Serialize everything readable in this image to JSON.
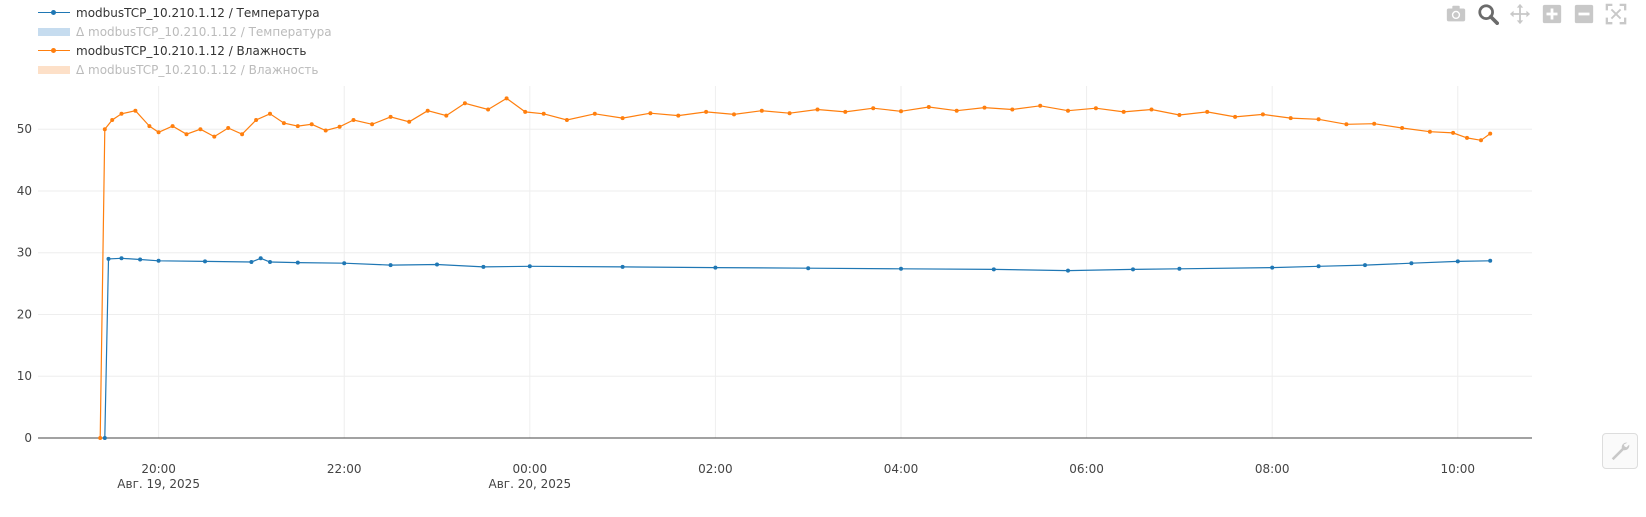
{
  "legend": [
    {
      "label": "modbusTCP_10.210.1.12 / Температура",
      "color": "#1f77b4",
      "style": "line-marker",
      "faded": false
    },
    {
      "label": "Δ modbusTCP_10.210.1.12 / Температура",
      "color": "#c6dcef",
      "style": "fill",
      "faded": true
    },
    {
      "label": "modbusTCP_10.210.1.12 / Влажность",
      "color": "#ff7f0e",
      "style": "line-marker",
      "faded": false
    },
    {
      "label": "Δ modbusTCP_10.210.1.12 / Влажность",
      "color": "#fde0c8",
      "style": "fill",
      "faded": true
    }
  ],
  "modebar": [
    "camera-icon",
    "zoom-icon",
    "pan-icon",
    "zoom-in-icon",
    "zoom-out-icon",
    "autoscale-icon"
  ],
  "chart_data": {
    "type": "line",
    "x_unit": "hours since 2025-08-19 00:00",
    "xlim": [
      18.7,
      34.8
    ],
    "ylim": [
      0,
      57
    ],
    "grid": true,
    "legend_position": "top-left",
    "y_ticks": [
      0,
      10,
      20,
      30,
      40,
      50
    ],
    "x_ticks": [
      {
        "value": 20,
        "label": "20:00",
        "sublabel": "Авг. 19, 2025"
      },
      {
        "value": 22,
        "label": "22:00",
        "sublabel": ""
      },
      {
        "value": 24,
        "label": "00:00",
        "sublabel": "Авг. 20, 2025"
      },
      {
        "value": 26,
        "label": "02:00",
        "sublabel": ""
      },
      {
        "value": 28,
        "label": "04:00",
        "sublabel": ""
      },
      {
        "value": 30,
        "label": "06:00",
        "sublabel": ""
      },
      {
        "value": 32,
        "label": "08:00",
        "sublabel": ""
      },
      {
        "value": 34,
        "label": "10:00",
        "sublabel": ""
      }
    ],
    "series": [
      {
        "name": "modbusTCP_10.210.1.12 / Температура",
        "color": "#1f77b4",
        "x": [
          19.42,
          19.46,
          19.6,
          19.8,
          20.0,
          20.5,
          21.0,
          21.1,
          21.2,
          21.5,
          22.0,
          22.5,
          23.0,
          23.5,
          24.0,
          25.0,
          26.0,
          27.0,
          28.0,
          29.0,
          29.8,
          30.5,
          31.0,
          32.0,
          32.5,
          33.0,
          33.5,
          34.0,
          34.35
        ],
        "y": [
          0,
          29.0,
          29.1,
          28.9,
          28.7,
          28.6,
          28.5,
          29.1,
          28.5,
          28.4,
          28.3,
          28.0,
          28.1,
          27.7,
          27.8,
          27.7,
          27.6,
          27.5,
          27.4,
          27.3,
          27.1,
          27.3,
          27.4,
          27.6,
          27.8,
          28.0,
          28.3,
          28.6,
          28.7
        ]
      },
      {
        "name": "modbusTCP_10.210.1.12 / Влажность",
        "color": "#ff7f0e",
        "x": [
          19.37,
          19.42,
          19.5,
          19.6,
          19.75,
          19.9,
          20.0,
          20.15,
          20.3,
          20.45,
          20.6,
          20.75,
          20.9,
          21.05,
          21.2,
          21.35,
          21.5,
          21.65,
          21.8,
          21.95,
          22.1,
          22.3,
          22.5,
          22.7,
          22.9,
          23.1,
          23.3,
          23.55,
          23.75,
          23.95,
          24.15,
          24.4,
          24.7,
          25.0,
          25.3,
          25.6,
          25.9,
          26.2,
          26.5,
          26.8,
          27.1,
          27.4,
          27.7,
          28.0,
          28.3,
          28.6,
          28.9,
          29.2,
          29.5,
          29.8,
          30.1,
          30.4,
          30.7,
          31.0,
          31.3,
          31.6,
          31.9,
          32.2,
          32.5,
          32.8,
          33.1,
          33.4,
          33.7,
          33.95,
          34.1,
          34.25,
          34.35
        ],
        "y": [
          0,
          50,
          51.5,
          52.5,
          53,
          50.5,
          49.5,
          50.5,
          49.2,
          50,
          48.8,
          50.2,
          49.2,
          51.5,
          52.5,
          51,
          50.5,
          50.8,
          49.8,
          50.4,
          51.5,
          50.8,
          52,
          51.2,
          53,
          52.2,
          54.2,
          53.2,
          55,
          52.8,
          52.5,
          51.5,
          52.5,
          51.8,
          52.6,
          52.2,
          52.8,
          52.4,
          53,
          52.6,
          53.2,
          52.8,
          53.4,
          52.9,
          53.6,
          53,
          53.5,
          53.2,
          53.8,
          53,
          53.4,
          52.8,
          53.2,
          52.3,
          52.8,
          52,
          52.4,
          51.8,
          51.6,
          50.8,
          50.9,
          50.2,
          49.6,
          49.4,
          48.6,
          48.2,
          49.3
        ]
      }
    ]
  }
}
